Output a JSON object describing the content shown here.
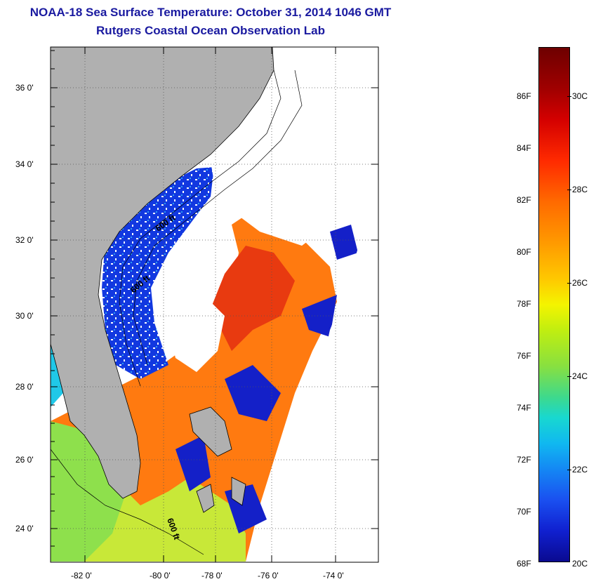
{
  "header": {
    "title_line1": "NOAA-18 Sea Surface Temperature:  October 31, 2014 1046 GMT",
    "title_line2": "Rutgers Coastal Ocean Observation Lab"
  },
  "map": {
    "lat_labels": [
      "36 0'",
      "34 0'",
      "32 0'",
      "30 0'",
      "28 0'",
      "26 0'",
      "24 0'"
    ],
    "lon_labels": [
      "-82 0'",
      "-80 0'",
      "-78 0'",
      "-76 0'",
      "-74 0'"
    ],
    "contour_labels": [
      "600 ft",
      "600 ft",
      "600 ft"
    ],
    "land_color": "#b0b0b0",
    "no_data_color": "#ffffff"
  },
  "colorbar": {
    "fahrenheit_labels": [
      "86F",
      "84F",
      "82F",
      "80F",
      "78F",
      "76F",
      "74F",
      "72F",
      "70F",
      "68F"
    ],
    "celsius_labels": [
      "30C",
      "28C",
      "26C",
      "24C",
      "22C",
      "20C"
    ],
    "min_f": 68,
    "max_f": 88,
    "min_c": 20,
    "max_c": 31.1,
    "colors": {
      "cold": "#0a0a90",
      "mid": "#f4f400",
      "hot": "#6e0000"
    }
  }
}
